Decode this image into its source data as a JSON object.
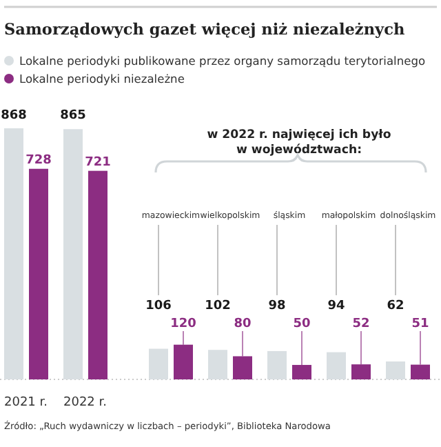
{
  "chart_data": [
    {
      "type": "bar",
      "title": "Samorządowych gazet więcej niż niezależnych",
      "categories": [
        "2021 r.",
        "2022 r."
      ],
      "series": [
        {
          "name": "Lokalne periodyki publikowane przez organy samorządu terytorialnego",
          "color": "#d9dfe2",
          "values": [
            868,
            865
          ]
        },
        {
          "name": "Lokalne periodyki niezależne",
          "color": "#8c2d82",
          "values": [
            728,
            721
          ]
        }
      ],
      "data_labels": true,
      "legend": "top",
      "annotations": [
        "Źródło: „Ruch wydawniczy w liczbach – periodyki”, Biblioteka Narodowa"
      ]
    },
    {
      "type": "bar",
      "title": "w 2022 r. najwięcej ich było\nw województwach:",
      "categories": [
        "mazowieckim",
        "wielkopolskim",
        "śląskim",
        "małopolskim",
        "dolnośląskim"
      ],
      "series": [
        {
          "color": "#d9dfe2",
          "values": [
            106,
            102,
            98,
            94,
            62
          ]
        },
        {
          "color": "#8c2d82",
          "values": [
            120,
            80,
            50,
            52,
            51
          ]
        }
      ],
      "data_labels": true
    }
  ]
}
